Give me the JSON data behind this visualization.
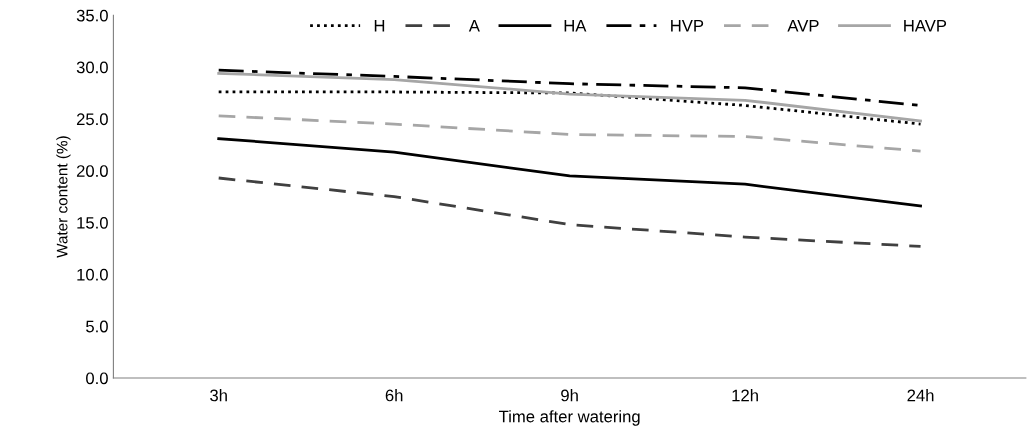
{
  "chart_data": {
    "type": "line",
    "xlabel": "Time after watering",
    "ylabel": "Water content (%)",
    "categories": [
      "3h",
      "6h",
      "9h",
      "12h",
      "24h"
    ],
    "ylim": [
      0,
      35
    ],
    "yticks": [
      {
        "value": 0,
        "label": "0.0"
      },
      {
        "value": 5,
        "label": "5.0"
      },
      {
        "value": 10,
        "label": "10.0"
      },
      {
        "value": 15,
        "label": "15.0"
      },
      {
        "value": 20,
        "label": "20.0"
      },
      {
        "value": 25,
        "label": "25.0"
      },
      {
        "value": 30,
        "label": "30.0"
      },
      {
        "value": 35,
        "label": "35.0"
      }
    ],
    "grid": false,
    "legend": "top right",
    "marker": "none",
    "series": [
      {
        "name": "H",
        "color": "#000000",
        "line_style": "dotted",
        "values": [
          27.6,
          27.6,
          27.5,
          26.3,
          24.5
        ]
      },
      {
        "name": "A",
        "color": "#404040",
        "line_style": "dashed",
        "values": [
          19.3,
          17.5,
          14.8,
          13.6,
          12.7
        ]
      },
      {
        "name": "HA",
        "color": "#000000",
        "line_style": "solid",
        "values": [
          23.1,
          21.8,
          19.5,
          18.7,
          16.6
        ]
      },
      {
        "name": "HVP",
        "color": "#000000",
        "line_style": "dashdot",
        "values": [
          29.7,
          29.1,
          28.4,
          28.0,
          26.3
        ]
      },
      {
        "name": "AVP",
        "color": "#a6a6a6",
        "line_style": "dashed",
        "values": [
          25.3,
          24.5,
          23.5,
          23.3,
          21.9
        ]
      },
      {
        "name": "HAVP",
        "color": "#a6a6a6",
        "line_style": "solid",
        "values": [
          29.4,
          28.8,
          27.4,
          26.8,
          24.8
        ]
      }
    ]
  }
}
